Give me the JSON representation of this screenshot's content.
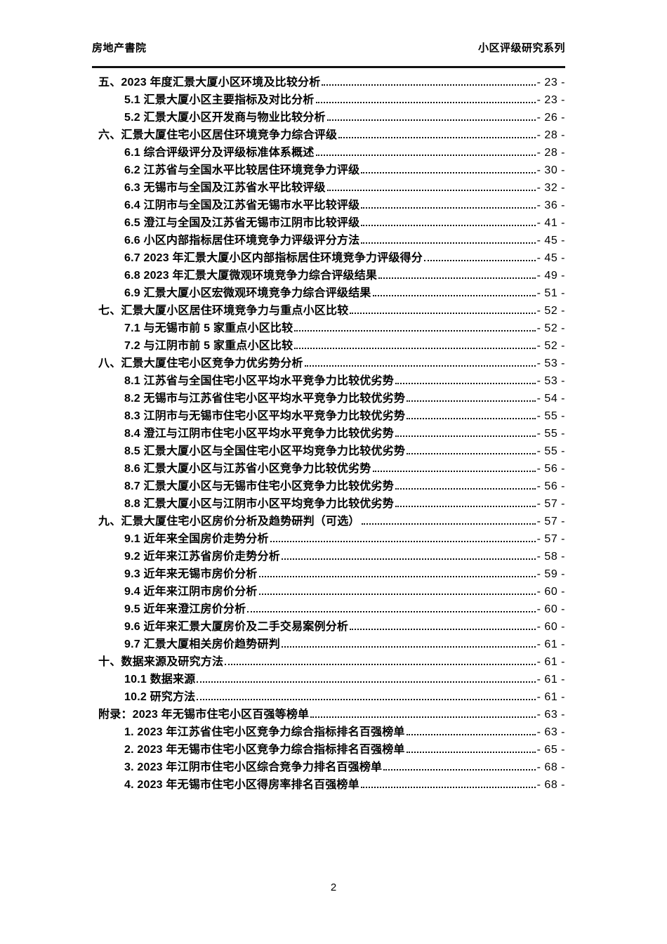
{
  "colors": {
    "text": "#000000",
    "background": "#ffffff",
    "rule": "#121212"
  },
  "header": {
    "left": "房地产書院",
    "right": "小区评级研究系列"
  },
  "footer": {
    "page_number": "2"
  },
  "toc": {
    "entries": [
      {
        "level": 1,
        "label": "五、2023 年度汇景大厦小区环境及比较分析",
        "page": "- 23 -"
      },
      {
        "level": 2,
        "label": "5.1 汇景大厦小区主要指标及对比分析",
        "page": "- 23 -"
      },
      {
        "level": 2,
        "label": "5.2 汇景大厦小区开发商与物业比较分析",
        "page": "- 26 -"
      },
      {
        "level": 1,
        "label": "六、汇景大厦住宅小区居住环境竞争力综合评级",
        "page": "- 28 -"
      },
      {
        "level": 2,
        "label": "6.1 综合评级评分及评级标准体系概述",
        "page": "- 28 -"
      },
      {
        "level": 2,
        "label": "6.2 江苏省与全国水平比较居住环境竞争力评级",
        "page": "- 30 -"
      },
      {
        "level": 2,
        "label": "6.3 无锡市与全国及江苏省水平比较评级",
        "page": "- 32 -"
      },
      {
        "level": 2,
        "label": "6.4 江阴市与全国及江苏省无锡市水平比较评级",
        "page": "- 36 -"
      },
      {
        "level": 2,
        "label": "6.5 澄江与全国及江苏省无锡市江阴市比较评级",
        "page": "- 41 -"
      },
      {
        "level": 2,
        "label": "6.6 小区内部指标居住环境竞争力评级评分方法",
        "page": "- 45 -"
      },
      {
        "level": 2,
        "label": "6.7 2023 年汇景大厦小区内部指标居住环境竞争力评级得分",
        "page": "- 45 -"
      },
      {
        "level": 2,
        "label": "6.8 2023 年汇景大厦微观环境竞争力综合评级结果",
        "page": "- 49 -"
      },
      {
        "level": 2,
        "label": "6.9 汇景大厦小区宏微观环境竞争力综合评级结果",
        "page": "- 51 -"
      },
      {
        "level": 1,
        "label": "七、汇景大厦小区居住环境竞争力与重点小区比较",
        "page": "- 52 -"
      },
      {
        "level": 2,
        "label": "7.1 与无锡市前 5 家重点小区比较",
        "page": "- 52 -"
      },
      {
        "level": 2,
        "label": "7.2 与江阴市前 5 家重点小区比较",
        "page": "- 52 -"
      },
      {
        "level": 1,
        "label": "八、汇景大厦住宅小区竞争力优劣势分析",
        "page": "- 53 -"
      },
      {
        "level": 2,
        "label": "8.1 江苏省与全国住宅小区平均水平竞争力比较优劣势",
        "page": "- 53 -"
      },
      {
        "level": 2,
        "label": "8.2 无锡市与江苏省住宅小区平均水平竞争力比较优劣势",
        "page": "- 54 -"
      },
      {
        "level": 2,
        "label": "8.3 江阴市与无锡市住宅小区平均水平竞争力比较优劣势",
        "page": "- 55 -"
      },
      {
        "level": 2,
        "label": "8.4 澄江与江阴市住宅小区平均水平竞争力比较优劣势",
        "page": "- 55 -"
      },
      {
        "level": 2,
        "label": "8.5 汇景大厦小区与全国住宅小区平均竞争力比较优劣势",
        "page": "- 55 -"
      },
      {
        "level": 2,
        "label": "8.6 汇景大厦小区与江苏省小区竞争力比较优劣势",
        "page": "- 56 -"
      },
      {
        "level": 2,
        "label": "8.7 汇景大厦小区与无锡市住宅小区竞争力比较优劣势",
        "page": "- 56 -"
      },
      {
        "level": 2,
        "label": "8.8 汇景大厦小区与江阴市小区平均竞争力比较优劣势",
        "page": "- 57 -"
      },
      {
        "level": 1,
        "label": "九、汇景大厦住宅小区房价分析及趋势研判（可选）",
        "page": "- 57 -"
      },
      {
        "level": 2,
        "label": "9.1 近年来全国房价走势分析",
        "page": "- 57 -"
      },
      {
        "level": 2,
        "label": "9.2 近年来江苏省房价走势分析",
        "page": "- 58 -"
      },
      {
        "level": 2,
        "label": "9.3 近年来无锡市房价分析",
        "page": "- 59 -"
      },
      {
        "level": 2,
        "label": "9.4 近年来江阴市房价分析",
        "page": "- 60 -"
      },
      {
        "level": 2,
        "label": "9.5 近年来澄江房价分析",
        "page": "- 60 -"
      },
      {
        "level": 2,
        "label": "9.6 近年来汇景大厦房价及二手交易案例分析",
        "page": "- 60 -"
      },
      {
        "level": 2,
        "label": "9.7 汇景大厦相关房价趋势研判",
        "page": "- 61 -"
      },
      {
        "level": 1,
        "label": "十、数据来源及研究方法",
        "page": "- 61 -"
      },
      {
        "level": 2,
        "label": "10.1 数据来源",
        "page": "- 61 -"
      },
      {
        "level": 2,
        "label": "10.2 研究方法",
        "page": "- 61 -"
      },
      {
        "level": 1,
        "label": "附录：2023 年无锡市住宅小区百强等榜单",
        "page": "- 63 -"
      },
      {
        "level": 2,
        "label": "1. 2023 年江苏省住宅小区竞争力综合指标排名百强榜单",
        "page": "- 63 -"
      },
      {
        "level": 2,
        "label": "2. 2023 年无锡市住宅小区竞争力综合指标排名百强榜单",
        "page": "- 65 -"
      },
      {
        "level": 2,
        "label": "3. 2023 年江阴市住宅小区综合竞争力排名百强榜单",
        "page": "- 68 -"
      },
      {
        "level": 2,
        "label": "4. 2023 年无锡市住宅小区得房率排名百强榜单",
        "page": "- 68 -"
      }
    ]
  }
}
